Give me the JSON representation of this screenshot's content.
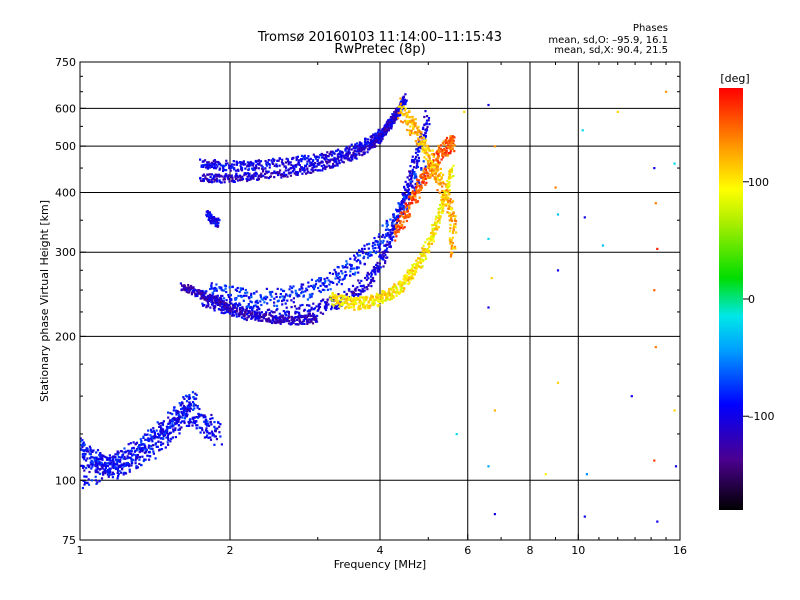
{
  "chart_data": {
    "type": "scatter",
    "title": "Tromsø 20160103 11:14:00–11:15:43",
    "subtitle": "RwPretec (8p)",
    "xlabel": "Frequency [MHz]",
    "ylabel": "Stationary phase Virtual Height [km]",
    "x_scale": "log",
    "y_scale": "log",
    "xlim": [
      1,
      16
    ],
    "ylim": [
      75,
      750
    ],
    "x_ticks": [
      1,
      2,
      4,
      6,
      8,
      10,
      16
    ],
    "x_tick_labels": [
      "1",
      "2",
      "4",
      "6",
      "8",
      "10",
      "16"
    ],
    "y_ticks": [
      75,
      100,
      200,
      300,
      400,
      500,
      600,
      750
    ],
    "y_tick_labels": [
      "75",
      "100",
      "200",
      "300",
      "400",
      "500",
      "600",
      "750"
    ],
    "grid": true,
    "info": {
      "heading": "Phases",
      "line_o": "mean, sd,O: –95.9, 16.1",
      "line_x": "mean, sd,X:  90.4, 21.5"
    },
    "colorbar": {
      "label": "[deg]",
      "range": [
        -180,
        180
      ],
      "ticks": [
        100,
        0,
        -100
      ],
      "tick_labels": [
        "100",
        "0",
        "–100"
      ]
    },
    "traces": [
      {
        "f": [
          1.75,
          1.9,
          2.1,
          2.3,
          2.6,
          2.9,
          3.2,
          3.5,
          3.8,
          4.0,
          4.2,
          4.4,
          4.5
        ],
        "h": [
          460,
          455,
          455,
          458,
          462,
          468,
          478,
          490,
          510,
          530,
          560,
          600,
          630
        ],
        "phase": -100,
        "spread": 0.025
      },
      {
        "f": [
          1.75,
          1.9,
          2.1,
          2.3,
          2.6,
          2.9,
          3.2,
          3.5,
          3.8,
          4.0,
          4.2,
          4.4
        ],
        "h": [
          430,
          428,
          430,
          434,
          440,
          448,
          460,
          475,
          495,
          520,
          560,
          600
        ],
        "phase": -110,
        "spread": 0.02
      },
      {
        "f": [
          1.75,
          1.9,
          2.1,
          2.3,
          2.6,
          2.9,
          3.2,
          3.5,
          3.8,
          4.0,
          4.2,
          4.4,
          4.6,
          4.8,
          5.0
        ],
        "h": [
          240,
          232,
          225,
          222,
          222,
          226,
          234,
          245,
          262,
          285,
          320,
          370,
          430,
          500,
          580
        ],
        "phase": -105,
        "spread": 0.035
      },
      {
        "f": [
          1.8,
          2.0,
          2.2,
          2.5,
          2.8,
          3.1,
          3.4,
          3.7,
          4.0,
          4.3,
          4.6,
          4.9
        ],
        "h": [
          250,
          244,
          240,
          242,
          248,
          258,
          272,
          292,
          318,
          350,
          400,
          460
        ],
        "phase": -85,
        "spread": 0.045
      },
      {
        "f": [
          1.6,
          1.7,
          1.8,
          1.9,
          2.0,
          2.2,
          2.4,
          2.6,
          2.8,
          3.0
        ],
        "h": [
          255,
          248,
          242,
          236,
          230,
          222,
          218,
          216,
          216,
          218
        ],
        "phase": -115,
        "spread": 0.02
      },
      {
        "f": [
          3.2,
          3.4,
          3.6,
          3.8,
          4.0,
          4.2,
          4.4,
          4.6,
          4.8,
          5.0,
          5.2,
          5.4,
          5.6
        ],
        "h": [
          240,
          236,
          234,
          236,
          240,
          246,
          255,
          268,
          285,
          310,
          345,
          390,
          450
        ],
        "phase": 100,
        "spread": 0.03
      },
      {
        "f": [
          4.3,
          4.5,
          4.7,
          4.9,
          5.1,
          5.3,
          5.5,
          5.6
        ],
        "h": [
          330,
          360,
          395,
          430,
          460,
          485,
          500,
          510
        ],
        "phase": 150,
        "spread": 0.04
      },
      {
        "f": [
          4.4,
          4.6,
          4.8,
          5.0,
          5.2,
          5.4,
          5.6,
          5.6
        ],
        "h": [
          600,
          560,
          520,
          480,
          440,
          400,
          360,
          300
        ],
        "phase": 120,
        "spread": 0.05
      },
      {
        "f": [
          1.0,
          1.1,
          1.2,
          1.3,
          1.4,
          1.5,
          1.6,
          1.7,
          1.8,
          1.9
        ],
        "h": [
          102,
          105,
          108,
          112,
          118,
          126,
          135,
          138,
          130,
          125
        ],
        "phase": -95,
        "spread": 0.06
      },
      {
        "f": [
          1.0,
          1.05,
          1.1,
          1.15,
          1.2,
          1.3,
          1.4,
          1.5,
          1.6,
          1.7
        ],
        "h": [
          118,
          112,
          108,
          106,
          110,
          115,
          122,
          130,
          140,
          150
        ],
        "phase": -90,
        "spread": 0.05
      },
      {
        "f": [
          1.8,
          1.85,
          1.9
        ],
        "h": [
          360,
          350,
          345
        ],
        "phase": -100,
        "spread": 0.02
      }
    ],
    "isolated_points": [
      {
        "f": 6.6,
        "h": 610,
        "phase": -100
      },
      {
        "f": 6.8,
        "h": 500,
        "phase": 130
      },
      {
        "f": 6.6,
        "h": 320,
        "phase": -20
      },
      {
        "f": 6.7,
        "h": 265,
        "phase": 110
      },
      {
        "f": 6.6,
        "h": 230,
        "phase": -100
      },
      {
        "f": 6.8,
        "h": 140,
        "phase": 120
      },
      {
        "f": 6.6,
        "h": 107,
        "phase": -40
      },
      {
        "f": 6.8,
        "h": 85,
        "phase": -100
      },
      {
        "f": 5.9,
        "h": 590,
        "phase": 110
      },
      {
        "f": 5.7,
        "h": 125,
        "phase": -20
      },
      {
        "f": 8.6,
        "h": 103,
        "phase": 100
      },
      {
        "f": 9.0,
        "h": 410,
        "phase": 140
      },
      {
        "f": 9.1,
        "h": 360,
        "phase": -30
      },
      {
        "f": 9.1,
        "h": 275,
        "phase": -100
      },
      {
        "f": 9.1,
        "h": 160,
        "phase": 110
      },
      {
        "f": 10.2,
        "h": 540,
        "phase": -20
      },
      {
        "f": 10.3,
        "h": 355,
        "phase": -100
      },
      {
        "f": 10.4,
        "h": 103,
        "phase": -50
      },
      {
        "f": 10.3,
        "h": 84,
        "phase": -100
      },
      {
        "f": 11.2,
        "h": 310,
        "phase": -30
      },
      {
        "f": 12.0,
        "h": 590,
        "phase": 110
      },
      {
        "f": 12.8,
        "h": 150,
        "phase": -100
      },
      {
        "f": 14.2,
        "h": 450,
        "phase": -100
      },
      {
        "f": 14.3,
        "h": 380,
        "phase": 140
      },
      {
        "f": 14.4,
        "h": 305,
        "phase": 170
      },
      {
        "f": 14.2,
        "h": 250,
        "phase": 150
      },
      {
        "f": 14.3,
        "h": 190,
        "phase": 140
      },
      {
        "f": 14.2,
        "h": 110,
        "phase": 160
      },
      {
        "f": 14.4,
        "h": 82,
        "phase": -100
      },
      {
        "f": 15.0,
        "h": 650,
        "phase": 130
      },
      {
        "f": 15.6,
        "h": 140,
        "phase": 110
      },
      {
        "f": 15.7,
        "h": 107,
        "phase": -100
      },
      {
        "f": 15.6,
        "h": 460,
        "phase": -20
      }
    ]
  }
}
